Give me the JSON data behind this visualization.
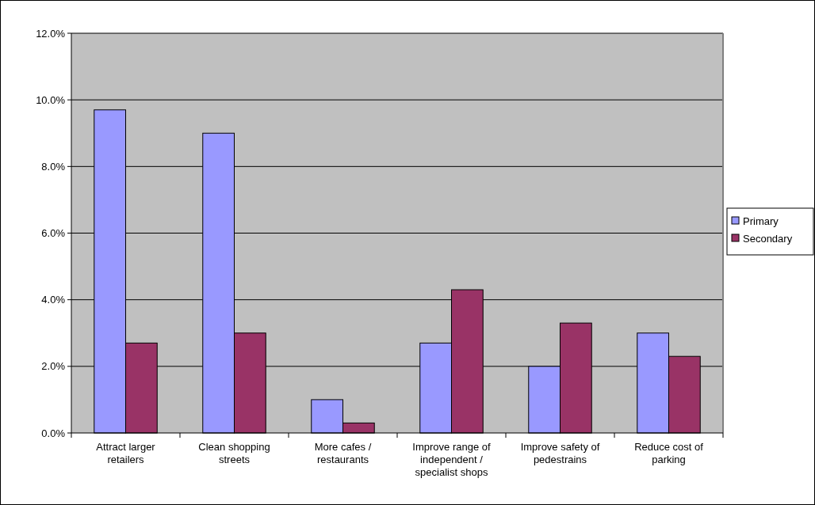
{
  "chart_data": {
    "type": "bar",
    "categories": [
      "Attract larger retailers",
      "Clean shopping streets",
      "More cafes / restaurants",
      "Improve range of independent / specialist shops",
      "Improve safety of pedestrains",
      "Reduce cost of parking"
    ],
    "series": [
      {
        "name": "Primary",
        "color": "#9999ff",
        "values": [
          9.7,
          9.0,
          1.0,
          2.7,
          2.0,
          3.0
        ]
      },
      {
        "name": "Secondary",
        "color": "#993366",
        "values": [
          2.7,
          3.0,
          0.3,
          4.3,
          3.3,
          2.3
        ]
      }
    ],
    "ylim": [
      0,
      12
    ],
    "yticks": [
      {
        "value": 0,
        "label": "0.0%"
      },
      {
        "value": 2,
        "label": "2.0%"
      },
      {
        "value": 4,
        "label": "4.0%"
      },
      {
        "value": 6,
        "label": "6.0%"
      },
      {
        "value": 8,
        "label": "8.0%"
      },
      {
        "value": 10,
        "label": "10.0%"
      },
      {
        "value": 12,
        "label": "12.0%"
      }
    ],
    "grid": "y",
    "legend": "right"
  }
}
